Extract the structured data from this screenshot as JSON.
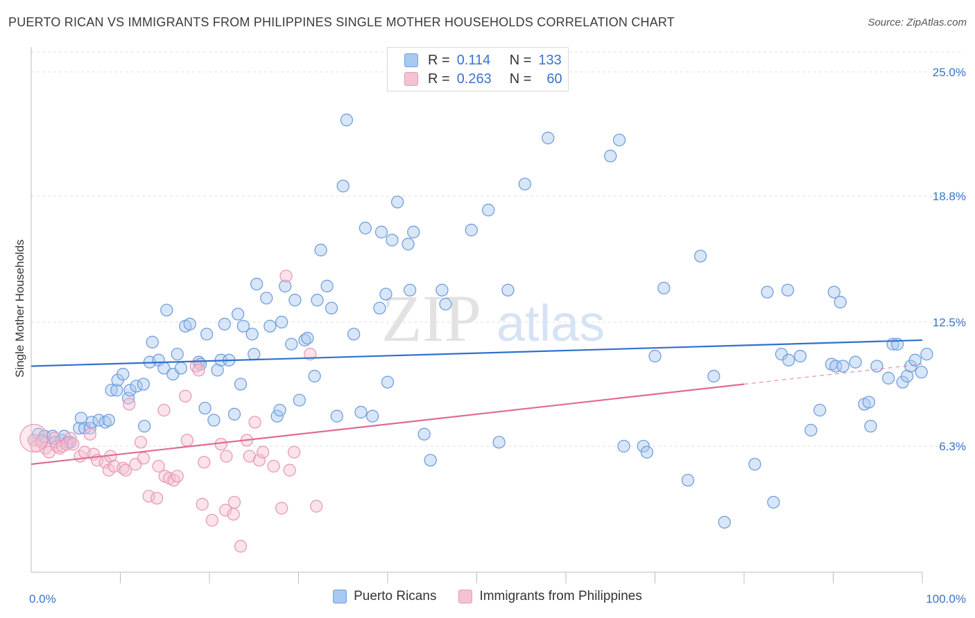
{
  "header": {
    "title": "PUERTO RICAN VS IMMIGRANTS FROM PHILIPPINES SINGLE MOTHER HOUSEHOLDS CORRELATION CHART",
    "source": "Source: ZipAtlas.com"
  },
  "watermark": {
    "zip": "ZIP",
    "atlas": "atlas"
  },
  "legend_top": {
    "rows": [
      {
        "r_label": "R =",
        "r_value": "0.114",
        "n_label": "N =",
        "n_value": "133"
      },
      {
        "r_label": "R =",
        "r_value": "0.263",
        "n_label": "N =",
        "n_value": "60"
      }
    ]
  },
  "colors": {
    "blue_stroke": "#6f9fdc",
    "blue_fill": "#a8c8f0",
    "blue_line": "#2f6fce",
    "pink_stroke": "#e89ab4",
    "pink_fill": "#f5c2d2",
    "pink_line": "#e06a94",
    "grid": "#dddddd",
    "tick_label": "#3a72c8"
  },
  "chart_data": {
    "type": "scatter",
    "title": "PUERTO RICAN VS IMMIGRANTS FROM PHILIPPINES SINGLE MOTHER HOUSEHOLDS CORRELATION CHART",
    "xlabel": "",
    "ylabel": "Single Mother Households",
    "xlim": [
      0,
      100
    ],
    "ylim": [
      0,
      26
    ],
    "y_ticks": [
      {
        "value": 6.3,
        "label": "6.3%"
      },
      {
        "value": 12.5,
        "label": "12.5%"
      },
      {
        "value": 18.8,
        "label": "18.8%"
      },
      {
        "value": 25.0,
        "label": "25.0%"
      }
    ],
    "x_tick_labels": [
      {
        "value": 0,
        "label": "0.0%"
      },
      {
        "value": 100,
        "label": "100.0%"
      }
    ],
    "x_minor_ticks": [
      10,
      20,
      30,
      40,
      50,
      60,
      70,
      80,
      90,
      100
    ],
    "grid": true,
    "legend_position": "bottom",
    "series": [
      {
        "name": "Puerto Ricans",
        "trend": {
          "x0": 0,
          "y0": 10.3,
          "x1": 100,
          "y1": 11.6,
          "dashed_from": null
        },
        "points": [
          [
            0.3,
            6.6
          ],
          [
            0.8,
            6.9
          ],
          [
            1.2,
            6.6
          ],
          [
            1.5,
            6.8
          ],
          [
            2.4,
            6.8
          ],
          [
            2.7,
            6.5
          ],
          [
            3.4,
            6.6
          ],
          [
            3.7,
            6.8
          ],
          [
            4.1,
            6.5
          ],
          [
            4.4,
            6.5
          ],
          [
            5.4,
            7.2
          ],
          [
            5.6,
            7.7
          ],
          [
            6.0,
            7.2
          ],
          [
            6.6,
            7.2
          ],
          [
            6.8,
            7.5
          ],
          [
            7.6,
            7.6
          ],
          [
            8.3,
            7.5
          ],
          [
            8.7,
            7.6
          ],
          [
            9.0,
            9.1
          ],
          [
            9.6,
            9.1
          ],
          [
            9.7,
            9.6
          ],
          [
            10.3,
            9.9
          ],
          [
            10.9,
            8.7
          ],
          [
            11.1,
            9.1
          ],
          [
            11.8,
            9.3
          ],
          [
            12.6,
            9.4
          ],
          [
            12.7,
            7.3
          ],
          [
            13.3,
            10.5
          ],
          [
            13.6,
            11.5
          ],
          [
            14.3,
            10.6
          ],
          [
            14.9,
            10.2
          ],
          [
            15.2,
            13.1
          ],
          [
            15.9,
            9.9
          ],
          [
            16.4,
            10.9
          ],
          [
            16.8,
            10.2
          ],
          [
            17.3,
            12.3
          ],
          [
            17.8,
            12.4
          ],
          [
            18.8,
            10.5
          ],
          [
            19.0,
            10.4
          ],
          [
            19.5,
            8.2
          ],
          [
            19.7,
            11.9
          ],
          [
            20.5,
            7.6
          ],
          [
            20.9,
            10.1
          ],
          [
            21.3,
            10.6
          ],
          [
            21.7,
            12.4
          ],
          [
            22.2,
            10.6
          ],
          [
            22.8,
            7.9
          ],
          [
            23.2,
            12.9
          ],
          [
            23.5,
            9.4
          ],
          [
            23.8,
            12.3
          ],
          [
            24.8,
            11.9
          ],
          [
            25.0,
            10.9
          ],
          [
            25.3,
            14.4
          ],
          [
            26.4,
            13.7
          ],
          [
            26.8,
            12.3
          ],
          [
            27.6,
            7.8
          ],
          [
            27.9,
            8.1
          ],
          [
            28.1,
            12.5
          ],
          [
            28.5,
            14.3
          ],
          [
            29.2,
            11.4
          ],
          [
            29.6,
            13.6
          ],
          [
            30.1,
            8.6
          ],
          [
            30.7,
            11.6
          ],
          [
            31.0,
            11.7
          ],
          [
            31.8,
            9.8
          ],
          [
            32.1,
            13.6
          ],
          [
            32.5,
            16.1
          ],
          [
            33.2,
            14.3
          ],
          [
            33.7,
            13.2
          ],
          [
            34.3,
            7.8
          ],
          [
            35.0,
            19.3
          ],
          [
            35.4,
            22.6
          ],
          [
            36.2,
            11.9
          ],
          [
            37.0,
            8.0
          ],
          [
            37.5,
            17.2
          ],
          [
            38.3,
            7.8
          ],
          [
            39.1,
            13.2
          ],
          [
            39.3,
            17.0
          ],
          [
            39.8,
            13.9
          ],
          [
            40.0,
            9.5
          ],
          [
            40.5,
            16.6
          ],
          [
            41.1,
            18.5
          ],
          [
            42.3,
            16.4
          ],
          [
            42.5,
            14.1
          ],
          [
            42.9,
            17.0
          ],
          [
            44.1,
            6.9
          ],
          [
            44.8,
            5.6
          ],
          [
            46.1,
            14.1
          ],
          [
            46.5,
            13.4
          ],
          [
            49.4,
            17.1
          ],
          [
            51.3,
            18.1
          ],
          [
            52.5,
            6.5
          ],
          [
            53.5,
            14.1
          ],
          [
            55.4,
            19.4
          ],
          [
            58.0,
            21.7
          ],
          [
            65.0,
            20.8
          ],
          [
            66.0,
            21.6
          ],
          [
            66.5,
            6.3
          ],
          [
            68.7,
            6.3
          ],
          [
            69.1,
            6.0
          ],
          [
            70.0,
            10.8
          ],
          [
            71.0,
            14.2
          ],
          [
            73.7,
            4.6
          ],
          [
            75.1,
            15.8
          ],
          [
            76.6,
            9.8
          ],
          [
            77.8,
            2.5
          ],
          [
            81.2,
            5.4
          ],
          [
            82.6,
            14.0
          ],
          [
            83.3,
            3.5
          ],
          [
            84.2,
            10.9
          ],
          [
            84.9,
            14.1
          ],
          [
            85.0,
            10.6
          ],
          [
            86.3,
            10.8
          ],
          [
            87.5,
            7.1
          ],
          [
            88.5,
            8.1
          ],
          [
            89.8,
            10.4
          ],
          [
            90.1,
            14.0
          ],
          [
            90.3,
            10.3
          ],
          [
            90.8,
            13.5
          ],
          [
            91.1,
            10.3
          ],
          [
            92.5,
            10.5
          ],
          [
            93.5,
            8.4
          ],
          [
            94.0,
            8.5
          ],
          [
            94.2,
            7.3
          ],
          [
            94.9,
            10.3
          ],
          [
            96.2,
            9.7
          ],
          [
            96.7,
            11.4
          ],
          [
            97.2,
            11.4
          ],
          [
            97.8,
            9.5
          ],
          [
            98.3,
            9.8
          ],
          [
            98.7,
            10.3
          ],
          [
            99.2,
            10.6
          ],
          [
            99.9,
            10.0
          ],
          [
            100.5,
            10.9
          ]
        ]
      },
      {
        "name": "Immigrants from Philippines",
        "trend": {
          "x0": 0,
          "y0": 5.4,
          "x1": 80,
          "y1": 9.4,
          "dashed_from": 80,
          "dashed_to_x": 100,
          "dashed_to_y": 10.4
        },
        "points": [
          [
            0.3,
            6.6
          ],
          [
            0.6,
            6.3
          ],
          [
            1.2,
            6.5
          ],
          [
            1.6,
            6.2
          ],
          [
            2.0,
            6.0
          ],
          [
            2.6,
            6.7
          ],
          [
            2.9,
            6.3
          ],
          [
            3.2,
            6.2
          ],
          [
            3.5,
            6.3
          ],
          [
            4.0,
            6.4
          ],
          [
            4.4,
            6.7
          ],
          [
            4.7,
            6.4
          ],
          [
            5.5,
            5.8
          ],
          [
            6.0,
            6.0
          ],
          [
            6.6,
            6.9
          ],
          [
            7.0,
            5.9
          ],
          [
            7.4,
            5.6
          ],
          [
            8.3,
            5.5
          ],
          [
            8.7,
            5.1
          ],
          [
            8.9,
            5.8
          ],
          [
            9.3,
            5.3
          ],
          [
            10.3,
            5.2
          ],
          [
            10.6,
            5.1
          ],
          [
            11.0,
            8.4
          ],
          [
            11.7,
            5.4
          ],
          [
            12.3,
            6.5
          ],
          [
            12.6,
            5.7
          ],
          [
            13.2,
            3.8
          ],
          [
            14.1,
            3.7
          ],
          [
            14.3,
            5.3
          ],
          [
            14.9,
            8.1
          ],
          [
            15.0,
            4.8
          ],
          [
            15.5,
            4.7
          ],
          [
            16.0,
            4.6
          ],
          [
            16.4,
            4.8
          ],
          [
            17.3,
            8.8
          ],
          [
            17.5,
            6.6
          ],
          [
            18.5,
            10.3
          ],
          [
            18.8,
            10.1
          ],
          [
            19.2,
            3.4
          ],
          [
            19.4,
            5.5
          ],
          [
            20.3,
            2.6
          ],
          [
            21.3,
            6.4
          ],
          [
            21.8,
            3.1
          ],
          [
            21.9,
            5.8
          ],
          [
            22.7,
            2.9
          ],
          [
            22.8,
            3.5
          ],
          [
            23.5,
            1.3
          ],
          [
            24.2,
            6.6
          ],
          [
            24.5,
            5.8
          ],
          [
            25.1,
            7.5
          ],
          [
            25.6,
            5.6
          ],
          [
            26.0,
            6.0
          ],
          [
            27.2,
            5.3
          ],
          [
            28.1,
            3.2
          ],
          [
            28.6,
            14.8
          ],
          [
            29.0,
            5.1
          ],
          [
            29.5,
            6.0
          ],
          [
            31.3,
            10.9
          ],
          [
            32.0,
            3.3
          ]
        ]
      }
    ]
  },
  "bottom_legend": {
    "items": [
      {
        "label": "Puerto Ricans"
      },
      {
        "label": "Immigrants from Philippines"
      }
    ]
  }
}
